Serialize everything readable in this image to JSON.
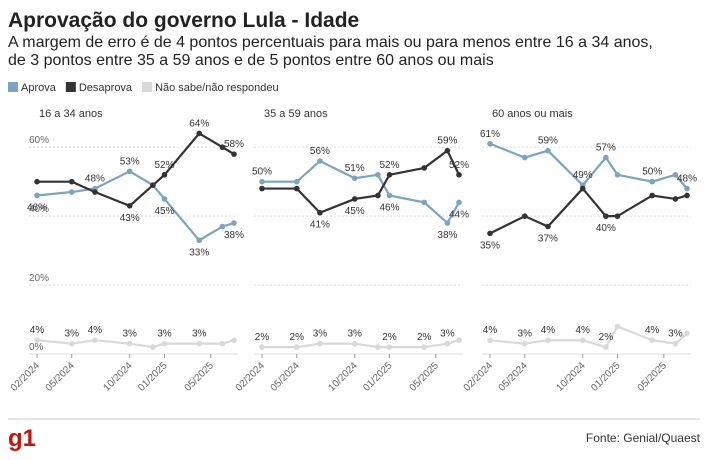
{
  "chart_data": {
    "type": "line",
    "title": "Aprovação do governo Lula - Idade",
    "subtitle": [
      "A margem de erro é de 4 pontos percentuais para mais ou para menos entre 16 a 34 anos,",
      "de 3 pontos entre 35 a 59 anos e de 5 pontos entre 60 anos ou mais"
    ],
    "series": [
      {
        "name": "Aprova",
        "color": "#7ba3c3"
      },
      {
        "name": "Desaprova",
        "color": "#333333"
      },
      {
        "name": "Não sabe/não respondeu",
        "color": "#d9d9d9"
      }
    ],
    "x": [
      "2024-02",
      "2024-05",
      "2024-07",
      "2024-10",
      "2024-12",
      "2025-01",
      "2025-04",
      "2025-06",
      "2025-07"
    ],
    "xlim": [
      "2024-02",
      "2025-07"
    ],
    "xticks": [
      {
        "value": "2024-02",
        "label": "02/2024"
      },
      {
        "value": "2024-05",
        "label": "05/2024"
      },
      {
        "value": "2024-10",
        "label": "10/2024"
      },
      {
        "value": "2025-01",
        "label": "01/2025"
      },
      {
        "value": "2025-05",
        "label": "05/2025"
      }
    ],
    "ylim": [
      0,
      65
    ],
    "yticks": [
      {
        "value": 0,
        "label": "0%"
      },
      {
        "value": 20,
        "label": "20%"
      },
      {
        "value": 40,
        "label": "40%"
      },
      {
        "value": 60,
        "label": "60%"
      }
    ],
    "grid": true,
    "panels": [
      {
        "title": "16 a 34 anos",
        "series": [
          {
            "values": [
              46,
              47,
              48,
              53,
              49,
              45,
              33,
              37,
              38
            ],
            "value_labels": [
              "46%",
              null,
              "48%",
              "53%",
              null,
              "45%",
              "33%",
              null,
              "38%"
            ]
          },
          {
            "values": [
              50,
              50,
              47,
              43,
              49,
              52,
              64,
              60,
              58
            ],
            "value_labels": [
              null,
              null,
              null,
              "43%",
              null,
              "52%",
              "64%",
              null,
              "58%"
            ]
          },
          {
            "values": [
              4,
              3,
              4,
              3,
              2,
              3,
              3,
              3,
              4
            ],
            "value_labels": [
              "4%",
              "3%",
              "4%",
              "3%",
              null,
              "3%",
              "3%",
              null,
              null
            ]
          }
        ]
      },
      {
        "title": "35 a 59 anos",
        "series": [
          {
            "values": [
              50,
              50,
              56,
              51,
              52,
              46,
              44,
              38,
              44
            ],
            "value_labels": [
              "50%",
              null,
              "56%",
              "51%",
              null,
              "46%",
              null,
              "38%",
              "44%"
            ]
          },
          {
            "values": [
              48,
              48,
              41,
              45,
              46,
              52,
              54,
              59,
              52
            ],
            "value_labels": [
              null,
              null,
              "41%",
              "45%",
              null,
              "52%",
              null,
              "59%",
              "52%"
            ]
          },
          {
            "values": [
              2,
              2,
              3,
              3,
              2,
              2,
              2,
              3,
              4
            ],
            "value_labels": [
              "2%",
              "2%",
              "3%",
              "3%",
              null,
              "2%",
              "2%",
              "3%",
              null
            ]
          }
        ]
      },
      {
        "title": "60 anos ou mais",
        "series": [
          {
            "values": [
              61,
              57,
              59,
              49,
              57,
              52,
              50,
              52,
              48
            ],
            "value_labels": [
              "61%",
              null,
              "59%",
              "49%",
              "57%",
              null,
              "50%",
              null,
              "48%"
            ]
          },
          {
            "values": [
              35,
              40,
              37,
              48,
              40,
              40,
              46,
              45,
              46
            ],
            "value_labels": [
              "35%",
              null,
              "37%",
              null,
              "40%",
              null,
              null,
              null,
              null
            ]
          },
          {
            "values": [
              4,
              3,
              4,
              4,
              2,
              8,
              4,
              3,
              6
            ],
            "value_labels": [
              "4%",
              "3%",
              "4%",
              "4%",
              "2%",
              null,
              "4%",
              "3%",
              null
            ]
          }
        ]
      }
    ],
    "source": "Fonte: Genial/Quaest",
    "logo": "g1"
  }
}
